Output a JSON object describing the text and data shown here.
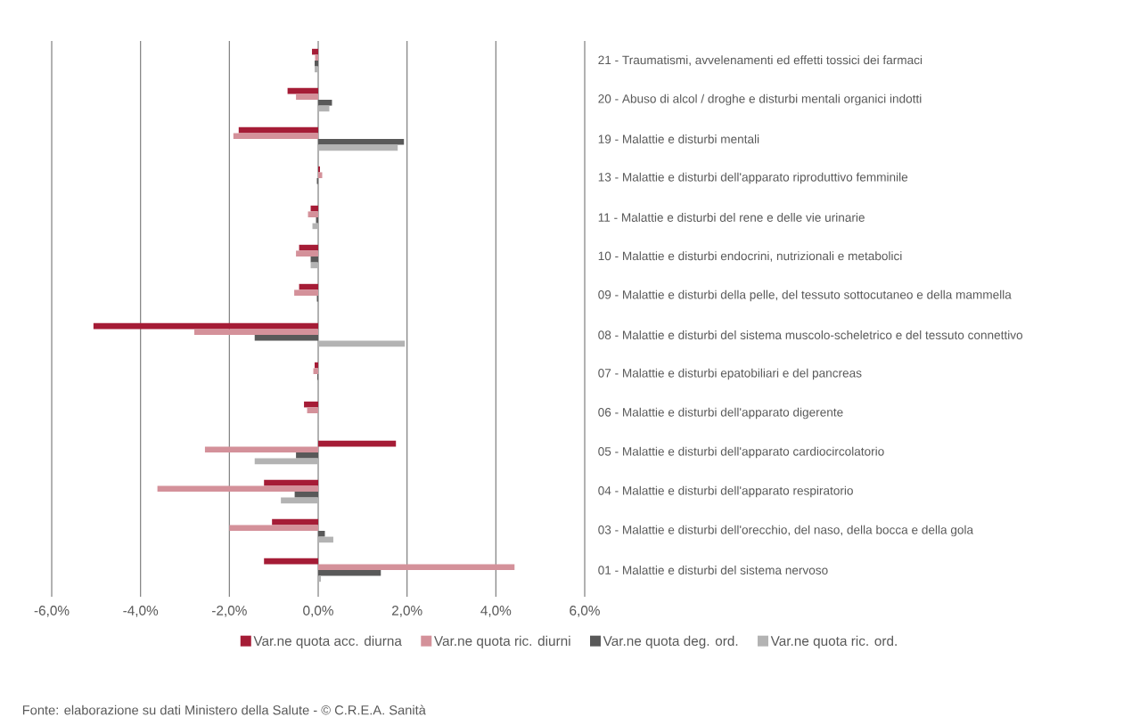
{
  "chart_data": {
    "type": "bar",
    "orientation": "horizontal",
    "categories": [
      "21 - Traumatismi, avvelenamenti ed effetti tossici dei farmaci",
      "20 - Abuso di alcol / droghe e disturbi mentali organici indotti",
      "19 - Malattie e disturbi mentali",
      "13 - Malattie e disturbi dell'apparato riproduttivo femminile",
      "11 - Malattie e disturbi del rene e delle vie urinarie",
      "10 - Malattie e disturbi endocrini, nutrizionali e metabolici",
      "09 - Malattie e disturbi della pelle, del tessuto sottocutaneo e della mammella",
      "08 - Malattie e disturbi del sistema muscolo-scheletrico e del tessuto connettivo",
      "07 - Malattie e disturbi epatobiliari e del pancreas",
      "06 - Malattie e disturbi dell'apparato digerente",
      "05 - Malattie e disturbi dell'apparato cardiocircolatorio",
      "04 - Malattie e disturbi dell'apparato respiratorio",
      "03 - Malattie e disturbi dell'orecchio, del naso, della bocca e della gola",
      "01 - Malattie e disturbi del sistema nervoso"
    ],
    "series": [
      {
        "name": "Var.ne quota acc. diurna",
        "color": "#a51c36",
        "values": [
          -0.14,
          -0.69,
          -1.79,
          0.04,
          -0.17,
          -0.43,
          -0.43,
          -5.06,
          -0.08,
          -0.32,
          1.75,
          -1.22,
          -1.04,
          -1.22
        ]
      },
      {
        "name": "Var.ne quota ric. diurni",
        "color": "#d4919a",
        "values": [
          -0.07,
          -0.5,
          -1.91,
          0.09,
          -0.23,
          -0.5,
          -0.54,
          -2.79,
          -0.11,
          -0.25,
          -2.55,
          -3.62,
          -2.0,
          4.42
        ]
      },
      {
        "name": "Var.ne quota deg. ord.",
        "color": "#595959",
        "values": [
          -0.08,
          0.31,
          1.93,
          -0.03,
          -0.05,
          -0.17,
          -0.03,
          -1.43,
          -0.02,
          null,
          -0.5,
          -0.53,
          0.15,
          1.41
        ]
      },
      {
        "name": "Var.ne quota ric. ord.",
        "color": "#b3b3b3",
        "values": [
          -0.08,
          0.25,
          1.79,
          null,
          -0.13,
          -0.17,
          null,
          1.95,
          null,
          0.02,
          -1.43,
          -0.84,
          0.34,
          0.06
        ]
      }
    ],
    "xlim": [
      -6,
      6
    ],
    "xticks": [
      {
        "value": -6,
        "label": "-6,0%"
      },
      {
        "value": -4,
        "label": "-4,0%"
      },
      {
        "value": -2,
        "label": "-2,0%"
      },
      {
        "value": 0,
        "label": "0,0%"
      },
      {
        "value": 2,
        "label": "2,0%"
      },
      {
        "value": 4,
        "label": "4,0%"
      },
      {
        "value": 6,
        "label": "6,0%"
      }
    ],
    "grid": "x",
    "legend": "bottom",
    "annotations": [
      "Fonte: elaborazione su dati Ministero della Salute - © C.R.E.A. Sanità"
    ]
  }
}
